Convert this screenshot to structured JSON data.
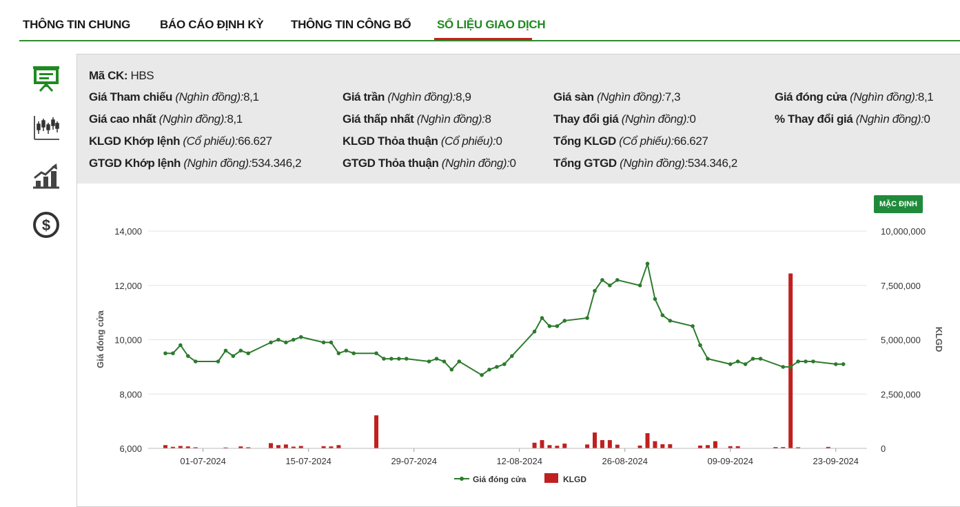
{
  "tabs": [
    {
      "label": "THÔNG TIN CHUNG"
    },
    {
      "label": "BÁO CÁO ĐỊNH KỲ"
    },
    {
      "label": "THÔNG TIN CÔNG BỐ"
    },
    {
      "label": "SỐ LIỆU GIAO DỊCH"
    }
  ],
  "sidebar": [
    "presentation-board-icon",
    "candlestick-chart-icon",
    "growth-chart-icon",
    "dollar-coin-icon"
  ],
  "info": {
    "ticker_label": "Mã CK:",
    "ticker": "HBS",
    "rows": [
      [
        {
          "label": "Giá Tham chiếu",
          "unit": "(Nghìn đồng):",
          "value": "8,1"
        },
        {
          "label": "Giá trần",
          "unit": "(Nghìn đồng):",
          "value": "8,9"
        },
        {
          "label": "Giá sàn",
          "unit": "(Nghìn đồng):",
          "value": "7,3"
        },
        {
          "label": "Giá đóng cửa",
          "unit": "(Nghìn đồng):",
          "value": "8,1"
        }
      ],
      [
        {
          "label": "Giá cao nhất",
          "unit": "(Nghìn đồng):",
          "value": "8,1"
        },
        {
          "label": "Giá thấp nhất",
          "unit": "(Nghìn đồng):",
          "value": "8"
        },
        {
          "label": "Thay đổi giá",
          "unit": "(Nghìn đồng):",
          "value": "0"
        },
        {
          "label": "% Thay đổi giá",
          "unit": "(Nghìn đồng):",
          "value": "0"
        }
      ],
      [
        {
          "label": "KLGD Khớp lệnh",
          "unit": "(Cổ phiếu):",
          "value": "66.627"
        },
        {
          "label": "KLGD Thỏa thuận",
          "unit": "(Cổ phiếu):",
          "value": "0"
        },
        {
          "label": "Tổng KLGD",
          "unit": "(Cổ phiếu):",
          "value": "66.627"
        }
      ],
      [
        {
          "label": "GTGD Khớp lệnh",
          "unit": "(Nghìn đồng):",
          "value": "534.346,2"
        },
        {
          "label": "GTGD Thỏa thuận",
          "unit": "(Nghìn đồng):",
          "value": "0"
        },
        {
          "label": "Tổng GTGD",
          "unit": "(Nghìn đồng):",
          "value": "534.346,2"
        }
      ]
    ]
  },
  "default_button": "MẶC ĐỊNH",
  "colors": {
    "accent": "#1f8a1f",
    "line": "#2d7a2d",
    "bar": "#c0201f",
    "tab_underline": "#c81e1e",
    "button": "#1f8a3a"
  },
  "chart_data": {
    "type": "line+bar",
    "ylabel_left": "Giá đóng cửa",
    "ylabel_right": "KLGD",
    "left_axis": {
      "min": 6000,
      "max": 14000,
      "ticks": [
        6000,
        8000,
        10000,
        12000,
        14000
      ],
      "tick_labels": [
        "6,000",
        "8,000",
        "10,000",
        "12,000",
        "14,000"
      ]
    },
    "right_axis": {
      "min": 0,
      "max": 10000000,
      "ticks": [
        0,
        2500000,
        5000000,
        7500000,
        10000000
      ],
      "tick_labels": [
        "0",
        "2,500,000",
        "5,000,000",
        "7,500,000",
        "10,000,000"
      ]
    },
    "x_tick_labels": [
      "01-07-2024",
      "15-07-2024",
      "29-07-2024",
      "12-08-2024",
      "26-08-2024",
      "09-09-2024",
      "23-09-2024"
    ],
    "x_tick_days": [
      5,
      19,
      33,
      47,
      61,
      75,
      89
    ],
    "legend": [
      {
        "name": "Giá đóng cửa",
        "kind": "line"
      },
      {
        "name": "KLGD",
        "kind": "bar"
      }
    ],
    "series": [
      {
        "name": "Giá đóng cửa",
        "type": "line",
        "points": [
          [
            0,
            9500
          ],
          [
            1,
            9500
          ],
          [
            2,
            9800
          ],
          [
            3,
            9400
          ],
          [
            4,
            9200
          ],
          [
            7,
            9200
          ],
          [
            8,
            9600
          ],
          [
            9,
            9400
          ],
          [
            10,
            9600
          ],
          [
            11,
            9500
          ],
          [
            14,
            9900
          ],
          [
            15,
            10000
          ],
          [
            16,
            9900
          ],
          [
            17,
            10000
          ],
          [
            18,
            10100
          ],
          [
            21,
            9900
          ],
          [
            22,
            9900
          ],
          [
            23,
            9500
          ],
          [
            24,
            9600
          ],
          [
            25,
            9500
          ],
          [
            28,
            9500
          ],
          [
            29,
            9300
          ],
          [
            30,
            9300
          ],
          [
            31,
            9300
          ],
          [
            32,
            9300
          ],
          [
            35,
            9200
          ],
          [
            36,
            9300
          ],
          [
            37,
            9200
          ],
          [
            38,
            8900
          ],
          [
            39,
            9200
          ],
          [
            42,
            8700
          ],
          [
            43,
            8900
          ],
          [
            44,
            9000
          ],
          [
            45,
            9100
          ],
          [
            46,
            9400
          ],
          [
            49,
            10300
          ],
          [
            50,
            10800
          ],
          [
            51,
            10500
          ],
          [
            52,
            10500
          ],
          [
            53,
            10700
          ],
          [
            56,
            10800
          ],
          [
            57,
            11800
          ],
          [
            58,
            12200
          ],
          [
            59,
            12000
          ],
          [
            60,
            12200
          ],
          [
            63,
            12000
          ],
          [
            64,
            12800
          ],
          [
            65,
            11500
          ],
          [
            66,
            10900
          ],
          [
            67,
            10700
          ],
          [
            70,
            10500
          ],
          [
            71,
            9800
          ],
          [
            72,
            9300
          ],
          [
            75,
            9100
          ],
          [
            76,
            9200
          ],
          [
            77,
            9100
          ],
          [
            78,
            9300
          ],
          [
            79,
            9300
          ],
          [
            82,
            9000
          ],
          [
            83,
            9000
          ],
          [
            84,
            9200
          ],
          [
            85,
            9200
          ],
          [
            86,
            9200
          ],
          [
            89,
            9100
          ],
          [
            90,
            9100
          ]
        ]
      },
      {
        "name": "KLGD",
        "type": "bar",
        "points": [
          [
            0,
            150000
          ],
          [
            1,
            70000
          ],
          [
            2,
            110000
          ],
          [
            3,
            90000
          ],
          [
            4,
            50000
          ],
          [
            8,
            40000
          ],
          [
            10,
            90000
          ],
          [
            11,
            50000
          ],
          [
            14,
            240000
          ],
          [
            15,
            150000
          ],
          [
            16,
            180000
          ],
          [
            17,
            80000
          ],
          [
            18,
            110000
          ],
          [
            21,
            100000
          ],
          [
            22,
            90000
          ],
          [
            23,
            150000
          ],
          [
            28,
            1520000
          ],
          [
            49,
            260000
          ],
          [
            50,
            380000
          ],
          [
            51,
            150000
          ],
          [
            52,
            120000
          ],
          [
            53,
            220000
          ],
          [
            56,
            180000
          ],
          [
            57,
            730000
          ],
          [
            58,
            380000
          ],
          [
            59,
            380000
          ],
          [
            60,
            170000
          ],
          [
            63,
            130000
          ],
          [
            64,
            700000
          ],
          [
            65,
            330000
          ],
          [
            66,
            190000
          ],
          [
            67,
            190000
          ],
          [
            71,
            130000
          ],
          [
            72,
            150000
          ],
          [
            73,
            330000
          ],
          [
            75,
            100000
          ],
          [
            76,
            100000
          ],
          [
            81,
            60000
          ],
          [
            82,
            60000
          ],
          [
            83,
            8050000
          ],
          [
            84,
            50000
          ],
          [
            88,
            66627
          ]
        ]
      }
    ]
  }
}
